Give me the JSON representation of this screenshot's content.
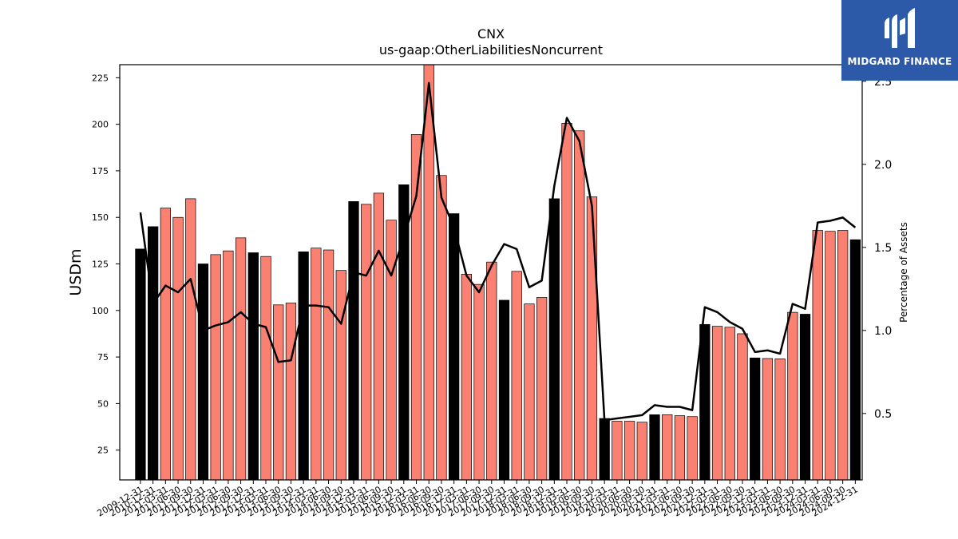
{
  "logo": {
    "text": "MIDGARD FINANCE"
  },
  "chart_data": {
    "type": "bar",
    "title": "CNX",
    "subtitle": "us-gaap:OtherLiabilitiesNoncurrent",
    "ylabel": "USDm",
    "y2label": "Percentage of Assets",
    "ylim": [
      9,
      232
    ],
    "y2lim": [
      0.1,
      2.6
    ],
    "yticks": [
      25,
      50,
      75,
      100,
      125,
      150,
      175,
      200,
      225
    ],
    "y2ticks": [
      0.5,
      1.0,
      1.5,
      2.0,
      2.5
    ],
    "y2ticklabels": [
      "0.5",
      "1.0",
      "1.5",
      "2.0",
      "2.5"
    ],
    "colors": {
      "annual": "#000000",
      "quarterly": "#fa8072",
      "line": "#000000"
    },
    "categories": [
      "2009-12-31",
      "2010-12-31",
      "2011-03-31",
      "2011-06-30",
      "2011-09-30",
      "2011-12-31",
      "2012-03-31",
      "2012-06-30",
      "2012-09-30",
      "2012-12-31",
      "2013-03-31",
      "2013-06-30",
      "2013-09-30",
      "2013-12-31",
      "2014-03-31",
      "2014-06-30",
      "2014-09-30",
      "2014-12-31",
      "2015-03-31",
      "2015-06-30",
      "2015-09-30",
      "2015-12-31",
      "2016-03-31",
      "2016-06-30",
      "2016-09-30",
      "2016-12-31",
      "2017-03-31",
      "2017-06-30",
      "2017-09-30",
      "2017-12-31",
      "2018-03-31",
      "2018-06-30",
      "2018-09-30",
      "2018-12-31",
      "2019-03-31",
      "2019-06-30",
      "2019-09-30",
      "2019-12-31",
      "2020-03-31",
      "2020-06-30",
      "2020-09-30",
      "2020-12-31",
      "2021-03-31",
      "2021-06-30",
      "2021-09-30",
      "2021-12-31",
      "2022-03-31",
      "2022-06-30",
      "2022-09-30",
      "2022-12-31",
      "2023-03-31",
      "2023-06-30",
      "2023-09-30",
      "2023-12-31",
      "2024-03-31",
      "2024-06-30",
      "2024-09-30",
      "2024-12-31"
    ],
    "bar_kind": [
      "annual",
      "annual",
      "quarterly",
      "quarterly",
      "quarterly",
      "annual",
      "quarterly",
      "quarterly",
      "quarterly",
      "annual",
      "quarterly",
      "quarterly",
      "quarterly",
      "annual",
      "quarterly",
      "quarterly",
      "quarterly",
      "annual",
      "quarterly",
      "quarterly",
      "quarterly",
      "annual",
      "quarterly",
      "quarterly",
      "quarterly",
      "annual",
      "quarterly",
      "quarterly",
      "quarterly",
      "annual",
      "quarterly",
      "quarterly",
      "quarterly",
      "annual",
      "quarterly",
      "quarterly",
      "quarterly",
      "annual",
      "quarterly",
      "quarterly",
      "quarterly",
      "annual",
      "quarterly",
      "quarterly",
      "quarterly",
      "annual",
      "quarterly",
      "quarterly",
      "quarterly",
      "annual",
      "quarterly",
      "quarterly",
      "quarterly",
      "annual",
      "quarterly",
      "quarterly",
      "quarterly",
      "annual"
    ],
    "values": [
      133,
      145,
      155,
      150,
      160,
      125,
      130,
      132,
      139,
      131,
      129,
      103,
      104,
      131.5,
      133.5,
      132.5,
      121.5,
      158.5,
      157,
      163,
      148.5,
      167.5,
      194.5,
      232,
      172.5,
      152,
      119.5,
      114,
      126,
      105.5,
      121,
      103.5,
      107,
      160,
      200.5,
      196.5,
      161,
      42,
      40.5,
      40.5,
      40,
      44,
      44,
      43.5,
      43,
      92.5,
      91.5,
      91,
      87.5,
      74.5,
      74.2,
      74,
      99,
      98,
      143,
      142.5,
      143,
      138
    ],
    "pct_of_assets": [
      1.71,
      1.16,
      1.27,
      1.23,
      1.31,
      1.0,
      1.03,
      1.05,
      1.11,
      1.04,
      1.02,
      0.81,
      0.82,
      1.15,
      1.15,
      1.14,
      1.04,
      1.35,
      1.33,
      1.48,
      1.33,
      1.56,
      1.81,
      2.49,
      1.8,
      1.62,
      1.33,
      1.23,
      1.39,
      1.52,
      1.49,
      1.26,
      1.3,
      1.87,
      2.28,
      2.14,
      1.75,
      0.46,
      0.47,
      0.48,
      0.49,
      0.55,
      0.54,
      0.54,
      0.52,
      1.14,
      1.11,
      1.05,
      1.01,
      0.87,
      0.88,
      0.86,
      1.16,
      1.13,
      1.65,
      1.66,
      1.68,
      1.62
    ],
    "grid": false,
    "legend": "none"
  }
}
